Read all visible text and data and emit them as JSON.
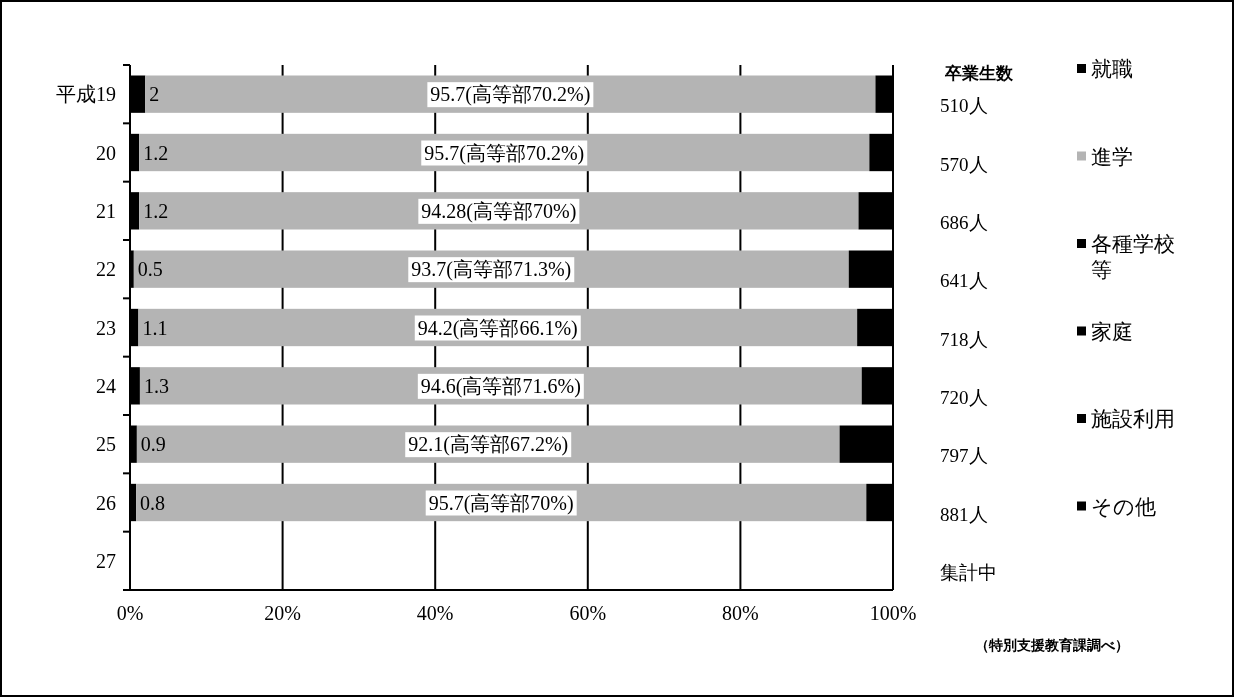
{
  "chart_data": {
    "type": "bar",
    "orientation": "horizontal",
    "stacked": true,
    "categories": [
      "平成19",
      "20",
      "21",
      "22",
      "23",
      "24",
      "25",
      "26",
      "27"
    ],
    "series": [
      {
        "name": "就職",
        "color": "#000000",
        "values": [
          2,
          1.2,
          1.2,
          0.5,
          1.1,
          1.3,
          0.9,
          0.8,
          null
        ],
        "value_labels": [
          "2",
          "1.2",
          "1.2",
          "0.5",
          "1.1",
          "1.3",
          "0.9",
          "0.8",
          null
        ]
      },
      {
        "name": "進学",
        "color": "#b4b4b4",
        "values": [
          95.7,
          95.7,
          94.28,
          93.7,
          94.2,
          94.6,
          92.1,
          95.7,
          null
        ],
        "value_labels": [
          "95.7(高等部70.2%)",
          "95.7(高等部70.2%)",
          "94.28(高等部70%)",
          "93.7(高等部71.3%)",
          "94.2(高等部66.1%)",
          "94.6(高等部71.6%)",
          "92.1(高等部67.2%)",
          "95.7(高等部70%)",
          null
        ]
      },
      {
        "name": "各種学校等",
        "color": "#000000",
        "values": [
          null,
          null,
          null,
          null,
          null,
          null,
          null,
          null,
          null
        ]
      },
      {
        "name": "家庭",
        "color": "#000000",
        "values": [
          null,
          null,
          null,
          null,
          null,
          null,
          null,
          null,
          null
        ]
      },
      {
        "name": "施設利用",
        "color": "#000000",
        "values": [
          null,
          null,
          null,
          null,
          null,
          null,
          null,
          null,
          null
        ]
      },
      {
        "name": "その他",
        "color": "#000000",
        "values": [
          null,
          null,
          null,
          null,
          null,
          null,
          null,
          null,
          null
        ]
      },
      {
        "color": "#000000",
        "values": [
          2.3,
          3.1,
          4.5,
          5.8,
          4.7,
          4.1,
          7.0,
          3.5,
          null
        ]
      }
    ],
    "xlim": [
      0,
      100
    ],
    "xticks": [
      {
        "value": 0,
        "label": "0%"
      },
      {
        "value": 20,
        "label": "20%"
      },
      {
        "value": 40,
        "label": "40%"
      },
      {
        "value": 60,
        "label": "60%"
      },
      {
        "value": 80,
        "label": "80%"
      },
      {
        "value": 100,
        "label": "100%"
      }
    ],
    "grid": "x",
    "legend": "right",
    "annotations": [
      "卒業生数",
      "510人",
      "570人",
      "686人",
      "641人",
      "718人",
      "720人",
      "797人",
      "881人",
      "集計中",
      "（特別支援教育課調べ）"
    ]
  }
}
